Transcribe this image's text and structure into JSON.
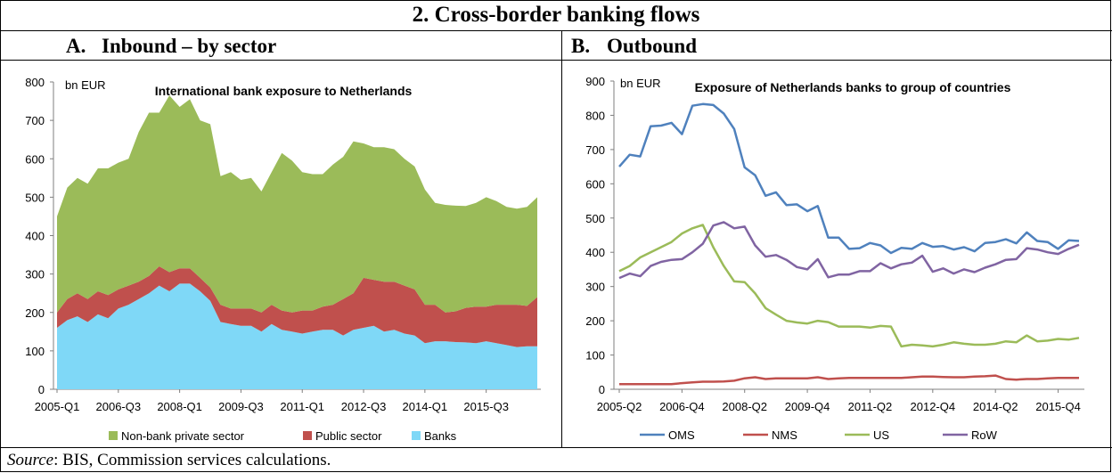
{
  "figure": {
    "title": "2. Cross-border banking flows",
    "source_label": "Source",
    "source_text": ": BIS, Commission services calculations."
  },
  "panels": [
    {
      "letter": "A.",
      "title": "Inbound – by sector"
    },
    {
      "letter": "B.",
      "title": "Outbound"
    }
  ],
  "chart_data": [
    {
      "type": "area",
      "stacked": true,
      "title": "International bank exposure to Netherlands",
      "unit_label": "bn EUR",
      "xlabel": "",
      "ylabel": "",
      "ylim": [
        0,
        800
      ],
      "yticks": [
        0,
        100,
        200,
        300,
        400,
        500,
        600,
        700,
        800
      ],
      "xtick_labels": [
        {
          "index": 0,
          "label": "2005-Q1"
        },
        {
          "index": 6,
          "label": "2006-Q3"
        },
        {
          "index": 12,
          "label": "2008-Q1"
        },
        {
          "index": 18,
          "label": "2009-Q3"
        },
        {
          "index": 24,
          "label": "2011-Q1"
        },
        {
          "index": 30,
          "label": "2012-Q3"
        },
        {
          "index": 36,
          "label": "2014-Q1"
        },
        {
          "index": 42,
          "label": "2015-Q3"
        }
      ],
      "grid": false,
      "legend_position": "bottom",
      "colors": {
        "Banks": "#7FD8F7",
        "Public sector": "#C0504D",
        "Non-bank private sector": "#9BBB59"
      },
      "series": [
        {
          "name": "Banks",
          "values": [
            160,
            180,
            190,
            175,
            195,
            185,
            210,
            220,
            235,
            250,
            270,
            255,
            275,
            275,
            255,
            230,
            175,
            170,
            165,
            165,
            150,
            170,
            155,
            150,
            145,
            150,
            155,
            155,
            140,
            155,
            160,
            165,
            150,
            155,
            145,
            140,
            120,
            125,
            125,
            123,
            122,
            120,
            125,
            120,
            115,
            110,
            112,
            112
          ]
        },
        {
          "name": "Public sector",
          "values": [
            40,
            55,
            60,
            60,
            60,
            60,
            50,
            50,
            45,
            45,
            50,
            50,
            40,
            40,
            35,
            35,
            45,
            40,
            45,
            45,
            50,
            50,
            50,
            50,
            60,
            55,
            60,
            65,
            95,
            95,
            130,
            120,
            130,
            125,
            125,
            120,
            100,
            95,
            75,
            80,
            90,
            95,
            90,
            100,
            105,
            110,
            105,
            128
          ]
        },
        {
          "name": "Non-bank private sector",
          "values": [
            250,
            290,
            300,
            300,
            320,
            330,
            330,
            330,
            390,
            425,
            400,
            460,
            420,
            440,
            410,
            425,
            335,
            355,
            335,
            340,
            315,
            345,
            410,
            395,
            360,
            355,
            345,
            365,
            370,
            395,
            350,
            345,
            350,
            345,
            330,
            320,
            300,
            265,
            280,
            275,
            265,
            270,
            285,
            270,
            255,
            250,
            258,
            260
          ]
        }
      ]
    },
    {
      "type": "line",
      "title": "Exposure of Netherlands banks to group of countries",
      "unit_label": "bn EUR",
      "xlabel": "",
      "ylabel": "",
      "ylim": [
        0,
        900
      ],
      "yticks": [
        0,
        100,
        200,
        300,
        400,
        500,
        600,
        700,
        800,
        900
      ],
      "xtick_labels": [
        {
          "index": 0,
          "label": "2005-Q2"
        },
        {
          "index": 6,
          "label": "2006-Q4"
        },
        {
          "index": 12,
          "label": "2008-Q2"
        },
        {
          "index": 18,
          "label": "2009-Q4"
        },
        {
          "index": 24,
          "label": "2011-Q2"
        },
        {
          "index": 30,
          "label": "2012-Q4"
        },
        {
          "index": 36,
          "label": "2014-Q2"
        },
        {
          "index": 42,
          "label": "2015-Q4"
        }
      ],
      "grid": false,
      "legend_position": "bottom",
      "colors": {
        "OMS": "#4F81BD",
        "NMS": "#C0504D",
        "US": "#9BBB59",
        "RoW": "#8064A2"
      },
      "series": [
        {
          "name": "OMS",
          "values": [
            650,
            685,
            680,
            768,
            770,
            778,
            745,
            828,
            833,
            830,
            805,
            760,
            648,
            625,
            565,
            575,
            538,
            540,
            520,
            535,
            443,
            443,
            410,
            412,
            427,
            420,
            398,
            413,
            410,
            427,
            416,
            418,
            408,
            415,
            403,
            427,
            430,
            438,
            426,
            458,
            433,
            430,
            410,
            435,
            433
          ]
        },
        {
          "name": "NMS",
          "values": [
            15,
            15,
            15,
            15,
            15,
            15,
            18,
            20,
            22,
            22,
            23,
            25,
            32,
            35,
            30,
            32,
            32,
            32,
            32,
            35,
            30,
            32,
            33,
            33,
            33,
            33,
            33,
            33,
            35,
            37,
            37,
            36,
            35,
            35,
            37,
            38,
            40,
            30,
            28,
            30,
            30,
            32,
            33,
            33,
            33
          ]
        },
        {
          "name": "US",
          "values": [
            345,
            360,
            385,
            400,
            415,
            430,
            455,
            470,
            480,
            415,
            360,
            315,
            313,
            280,
            237,
            218,
            200,
            195,
            192,
            200,
            196,
            183,
            183,
            183,
            180,
            185,
            183,
            125,
            130,
            128,
            125,
            130,
            137,
            133,
            130,
            130,
            133,
            140,
            137,
            157,
            140,
            142,
            147,
            145,
            150
          ]
        },
        {
          "name": "RoW",
          "values": [
            325,
            338,
            330,
            360,
            372,
            378,
            380,
            400,
            425,
            478,
            488,
            470,
            475,
            420,
            387,
            392,
            378,
            357,
            350,
            380,
            327,
            335,
            335,
            345,
            345,
            368,
            353,
            365,
            370,
            390,
            343,
            353,
            338,
            350,
            342,
            355,
            365,
            378,
            380,
            412,
            408,
            400,
            395,
            410,
            422
          ]
        }
      ]
    }
  ]
}
